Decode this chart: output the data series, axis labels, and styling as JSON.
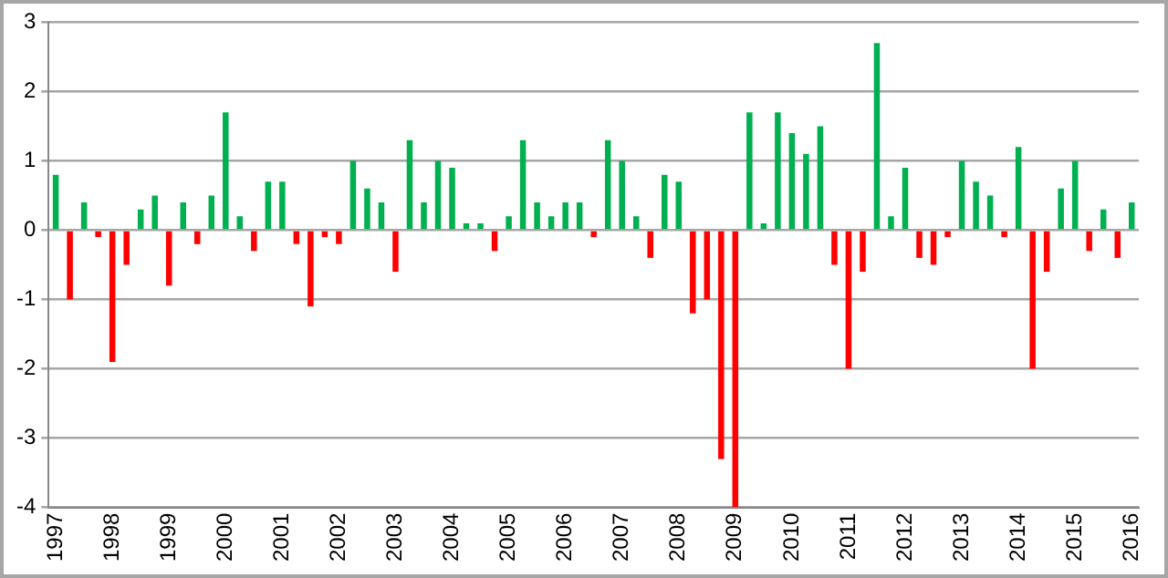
{
  "chart_data": {
    "type": "bar",
    "categories": [
      "1997",
      null,
      null,
      null,
      "1998",
      null,
      null,
      null,
      "1999",
      null,
      null,
      null,
      "2000",
      null,
      null,
      null,
      "2001",
      null,
      null,
      null,
      "2002",
      null,
      null,
      null,
      "2003",
      null,
      null,
      null,
      "2004",
      null,
      null,
      null,
      "2005",
      null,
      null,
      null,
      "2006",
      null,
      null,
      null,
      "2007",
      null,
      null,
      null,
      "2008",
      null,
      null,
      null,
      "2009",
      null,
      null,
      null,
      "2010",
      null,
      null,
      null,
      "2011",
      null,
      null,
      null,
      "2012",
      null,
      null,
      null,
      "2013",
      null,
      null,
      null,
      "2014",
      null,
      null,
      null,
      "2015",
      null,
      null,
      null,
      "2016"
    ],
    "values": [
      0.8,
      -1.0,
      0.4,
      -0.1,
      -1.9,
      -0.5,
      0.3,
      0.5,
      -0.8,
      0.4,
      -0.2,
      0.5,
      1.7,
      0.2,
      -0.3,
      0.7,
      0.7,
      -0.2,
      -1.1,
      -0.1,
      -0.2,
      1.0,
      0.6,
      0.4,
      -0.6,
      1.3,
      0.4,
      1.0,
      0.9,
      0.1,
      0.1,
      -0.3,
      0.2,
      1.3,
      0.4,
      0.2,
      0.4,
      0.4,
      -0.1,
      1.3,
      1.0,
      0.2,
      -0.4,
      0.8,
      0.7,
      -1.2,
      -1.0,
      -3.3,
      -4.0,
      1.7,
      0.1,
      1.7,
      1.4,
      1.1,
      1.5,
      -0.5,
      -2.0,
      -0.6,
      2.7,
      0.2,
      0.9,
      -0.4,
      -0.5,
      -0.1,
      1.0,
      0.7,
      0.5,
      -0.1,
      1.2,
      -2.0,
      -0.6,
      0.6,
      1.0,
      -0.3,
      0.3,
      -0.4,
      0.4
    ],
    "colors": [
      "#00b050",
      "#ff0000",
      "#00b050",
      "#ff0000",
      "#ff0000",
      "#ff0000",
      "#00b050",
      "#00b050",
      "#ff0000",
      "#00b050",
      "#ff0000",
      "#00b050",
      "#00b050",
      "#00b050",
      "#ff0000",
      "#00b050",
      "#00b050",
      "#ff0000",
      "#ff0000",
      "#ff0000",
      "#ff0000",
      "#00b050",
      "#00b050",
      "#00b050",
      "#ff0000",
      "#00b050",
      "#00b050",
      "#00b050",
      "#00b050",
      "#00b050",
      "#00b050",
      "#ff0000",
      "#00b050",
      "#00b050",
      "#00b050",
      "#00b050",
      "#00b050",
      "#00b050",
      "#ff0000",
      "#00b050",
      "#00b050",
      "#00b050",
      "#ff0000",
      "#00b050",
      "#00b050",
      "#ff0000",
      "#ff0000",
      "#ff0000",
      "#ff0000",
      "#00b050",
      "#00b050",
      "#00b050",
      "#00b050",
      "#00b050",
      "#00b050",
      "#ff0000",
      "#ff0000",
      "#ff0000",
      "#00b050",
      "#00b050",
      "#00b050",
      "#ff0000",
      "#ff0000",
      "#ff0000",
      "#00b050",
      "#00b050",
      "#00b050",
      "#ff0000",
      "#00b050",
      "#ff0000",
      "#ff0000",
      "#00b050",
      "#00b050",
      "#ff0000",
      "#00b050",
      "#ff0000",
      "#00b050"
    ],
    "ylim": [
      -4,
      3
    ],
    "yticks": [
      -4,
      -3,
      -2,
      -1,
      0,
      1,
      2,
      3
    ],
    "grid": "y",
    "legend": false
  }
}
